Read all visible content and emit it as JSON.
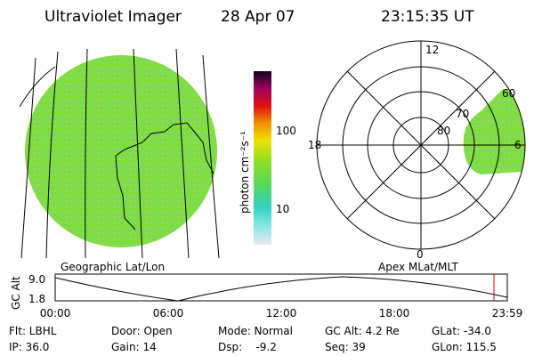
{
  "header": {
    "title": "Ultraviolet Imager",
    "date": "28 Apr 07",
    "time": "23:15:35 UT"
  },
  "colorbar": {
    "label": "photon cm⁻²s⁻¹",
    "ticks": [
      "100",
      "10"
    ]
  },
  "polar": {
    "labels": [
      "12",
      "18",
      "6",
      "0",
      "60",
      "70",
      "80"
    ]
  },
  "map_caption": "Geographic Lat/Lon",
  "polar_caption": "Apex MLat/MLT",
  "altitude_plot": {
    "ylabel": "GC Alt",
    "yticks": [
      "9.0",
      "1.8"
    ],
    "xticks": [
      "00:00",
      "06:00",
      "12:00",
      "18:00",
      "23:59"
    ]
  },
  "footer": {
    "rows": [
      [
        "Flt: LBHL",
        "Door: Open",
        "Mode: Normal",
        "GC Alt: 4.2 Re",
        "GLat: -34.0"
      ],
      [
        "IP: 36.0",
        "Gain: 14",
        "Dsp:    -9.2",
        "Seq: 39",
        "GLon: 115.5"
      ]
    ]
  }
}
